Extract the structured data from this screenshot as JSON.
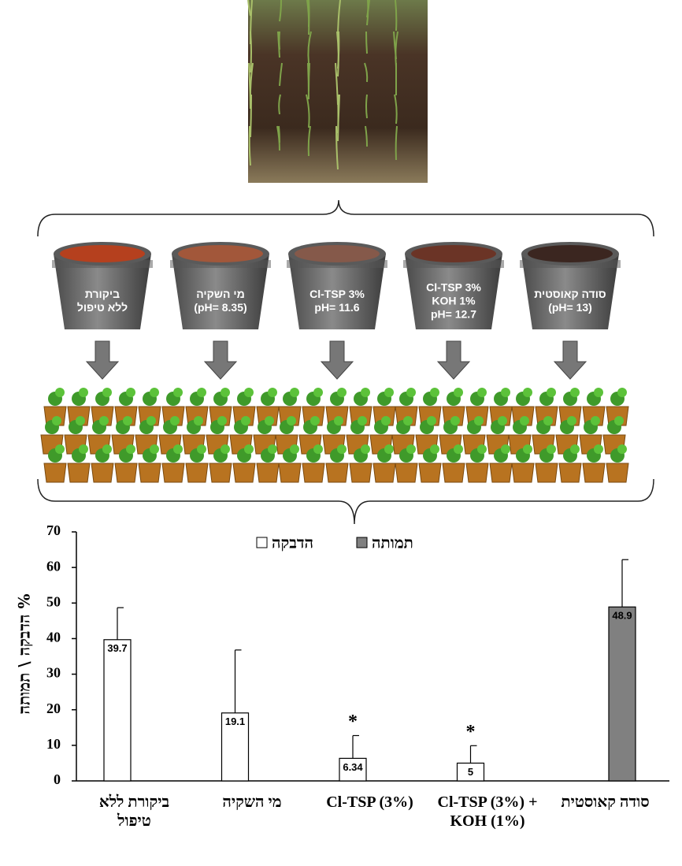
{
  "treatments": [
    {
      "lines": [
        "ביקורת",
        "ללא טיפול"
      ],
      "soil_color": "#b5401e"
    },
    {
      "lines": [
        "מי השקיה",
        "(pH= 8.35)"
      ],
      "soil_color": "#a2573a"
    },
    {
      "lines": [
        "Cl-TSP 3%",
        "pH= 11.6"
      ],
      "soil_color": "#85594a"
    },
    {
      "lines": [
        "Cl-TSP 3%",
        "KOH 1%",
        "pH= 12.7"
      ],
      "soil_color": "#6b3426"
    },
    {
      "lines": [
        "סודה קאוסטית",
        "(pH= 13)"
      ],
      "soil_color": "#3b2620"
    }
  ],
  "chart_data": {
    "type": "bar",
    "y_label": "% הדבקה \\ תמותה",
    "categories": [
      "ביקורת ללא טיפול",
      "מי השקיה",
      "Cl-TSP (3%)",
      "Cl-TSP (3%) + KOH (1%)",
      "סודה קאוסטית"
    ],
    "series": [
      {
        "name": "הדבקה",
        "color": "#ffffff",
        "values": [
          39.7,
          19.1,
          6.34,
          5,
          null
        ],
        "errors": [
          9.0,
          17.7,
          6.4,
          4.9,
          null
        ]
      },
      {
        "name": "תמותה",
        "color": "#808080",
        "values": [
          null,
          null,
          null,
          null,
          48.9
        ],
        "errors": [
          null,
          null,
          null,
          null,
          13.3
        ]
      }
    ],
    "significance": [
      null,
      null,
      "*",
      "*",
      null
    ],
    "ylim": [
      0,
      70
    ],
    "yticks": [
      0,
      10,
      20,
      30,
      40,
      50,
      60,
      70
    ]
  }
}
